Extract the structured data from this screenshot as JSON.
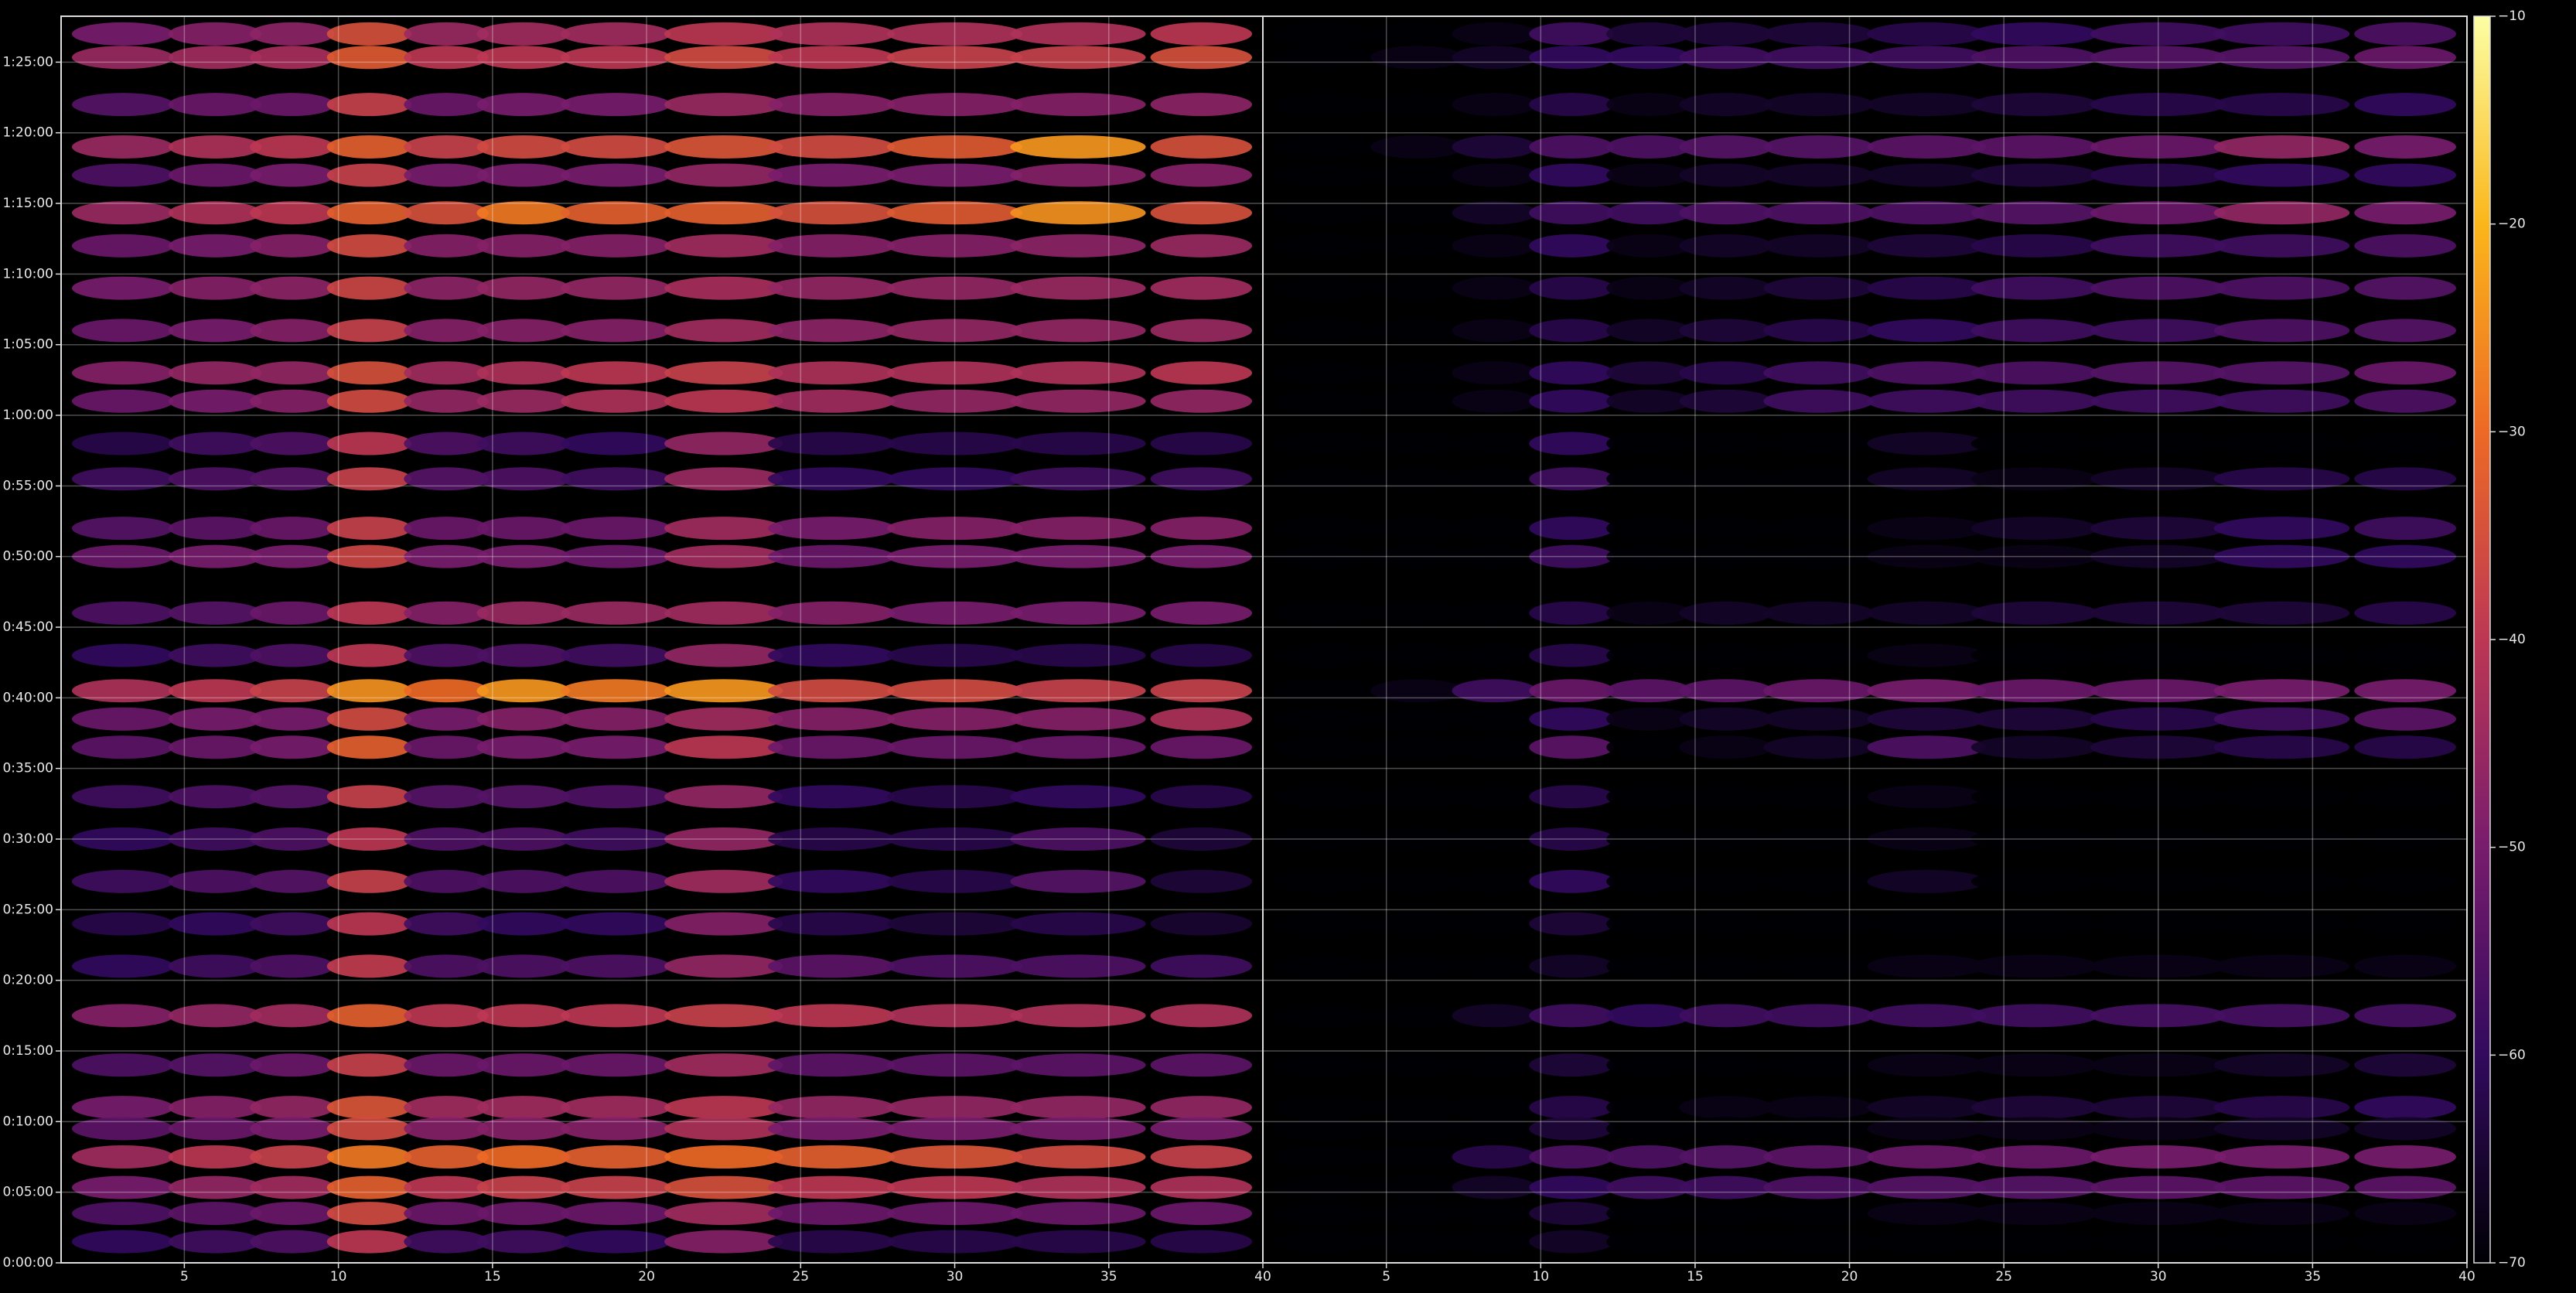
{
  "chart_data": {
    "type": "heatmap",
    "x": [
      3,
      6,
      8.5,
      11,
      13.5,
      16,
      19,
      22.5,
      26,
      30,
      34,
      38
    ],
    "y": [
      5220,
      5120,
      4920,
      4740,
      4620,
      4460,
      4320,
      4140,
      3960,
      3780,
      3660,
      3480,
      3330,
      3120,
      3000,
      2760,
      2580,
      2430,
      2310,
      2190,
      1980,
      1800,
      1620,
      1440,
      1260,
      1050,
      840,
      660,
      570,
      450,
      320,
      210,
      90
    ],
    "xlim": [
      1,
      40
    ],
    "xticks": [
      5,
      10,
      15,
      20,
      25,
      30,
      35,
      40
    ],
    "ylim": [
      0,
      5295
    ],
    "yticks": [
      {
        "value": 0,
        "label": "0:00:00"
      },
      {
        "value": 300,
        "label": "0:05:00"
      },
      {
        "value": 600,
        "label": "0:10:00"
      },
      {
        "value": 900,
        "label": "0:15:00"
      },
      {
        "value": 1200,
        "label": "0:20:00"
      },
      {
        "value": 1500,
        "label": "0:25:00"
      },
      {
        "value": 1800,
        "label": "0:30:00"
      },
      {
        "value": 2100,
        "label": "0:35:00"
      },
      {
        "value": 2400,
        "label": "0:40:00"
      },
      {
        "value": 2700,
        "label": "0:45:00"
      },
      {
        "value": 3000,
        "label": "0:50:00"
      },
      {
        "value": 3300,
        "label": "0:55:00"
      },
      {
        "value": 3600,
        "label": "1:00:00"
      },
      {
        "value": 3900,
        "label": "1:05:00"
      },
      {
        "value": 4200,
        "label": "1:10:00"
      },
      {
        "value": 4500,
        "label": "1:15:00"
      },
      {
        "value": 4800,
        "label": "1:20:00"
      },
      {
        "value": 5100,
        "label": "1:25:00"
      }
    ],
    "clim": [
      -70,
      -10
    ],
    "cticks": [
      {
        "value": -70,
        "label": "−70"
      },
      {
        "value": -60,
        "label": "−60"
      },
      {
        "value": -50,
        "label": "−50"
      },
      {
        "value": -40,
        "label": "−40"
      },
      {
        "value": -30,
        "label": "−30"
      },
      {
        "value": -20,
        "label": "−20"
      },
      {
        "value": -10,
        "label": "−10"
      }
    ],
    "colormap": [
      "#000004",
      "#320a5e",
      "#781c6d",
      "#bc3754",
      "#ed6925",
      "#fbb61a",
      "#fcffa4"
    ],
    "grid": true,
    "panels": [
      {
        "values": [
          [
            -50,
            -48,
            -47,
            -35,
            -45,
            -44,
            -44,
            -40,
            -42,
            -42,
            -42,
            -40
          ],
          [
            -45,
            -44,
            -43,
            -33,
            -40,
            -40,
            -40,
            -36,
            -40,
            -38,
            -38,
            -35
          ],
          [
            -55,
            -52,
            -52,
            -38,
            -52,
            -50,
            -50,
            -45,
            -48,
            -48,
            -48,
            -47
          ],
          [
            -45,
            -42,
            -40,
            -32,
            -38,
            -36,
            -36,
            -34,
            -36,
            -33,
            -24,
            -35
          ],
          [
            -56,
            -52,
            -50,
            -38,
            -50,
            -50,
            -50,
            -46,
            -50,
            -50,
            -48,
            -48
          ],
          [
            -45,
            -42,
            -40,
            -32,
            -35,
            -28,
            -32,
            -32,
            -35,
            -33,
            -25,
            -35
          ],
          [
            -52,
            -50,
            -48,
            -36,
            -48,
            -48,
            -48,
            -44,
            -48,
            -48,
            -47,
            -45
          ],
          [
            -50,
            -48,
            -47,
            -37,
            -47,
            -46,
            -46,
            -43,
            -46,
            -46,
            -45,
            -44
          ],
          [
            -52,
            -50,
            -48,
            -38,
            -48,
            -48,
            -48,
            -44,
            -47,
            -46,
            -46,
            -45
          ],
          [
            -48,
            -46,
            -46,
            -35,
            -44,
            -42,
            -40,
            -38,
            -42,
            -42,
            -42,
            -40
          ],
          [
            -52,
            -50,
            -48,
            -36,
            -46,
            -45,
            -42,
            -40,
            -44,
            -46,
            -46,
            -46
          ],
          [
            -62,
            -58,
            -56,
            -40,
            -56,
            -58,
            -60,
            -46,
            -62,
            -62,
            -62,
            -62
          ],
          [
            -58,
            -56,
            -55,
            -38,
            -55,
            -56,
            -58,
            -45,
            -60,
            -60,
            -58,
            -58
          ],
          [
            -55,
            -54,
            -52,
            -38,
            -52,
            -52,
            -52,
            -44,
            -50,
            -48,
            -48,
            -48
          ],
          [
            -52,
            -50,
            -50,
            -37,
            -50,
            -50,
            -52,
            -44,
            -52,
            -50,
            -50,
            -50
          ],
          [
            -56,
            -55,
            -52,
            -40,
            -48,
            -45,
            -45,
            -44,
            -48,
            -50,
            -50,
            -50
          ],
          [
            -60,
            -58,
            -56,
            -40,
            -56,
            -56,
            -58,
            -46,
            -60,
            -62,
            -62,
            -62
          ],
          [
            -42,
            -40,
            -38,
            -25,
            -30,
            -24,
            -28,
            -24,
            -36,
            -36,
            -38,
            -38
          ],
          [
            -52,
            -50,
            -50,
            -36,
            -50,
            -48,
            -48,
            -44,
            -48,
            -48,
            -48,
            -42
          ],
          [
            -54,
            -52,
            -50,
            -32,
            -52,
            -50,
            -50,
            -40,
            -52,
            -52,
            -52,
            -52
          ],
          [
            -58,
            -56,
            -55,
            -38,
            -55,
            -55,
            -56,
            -46,
            -60,
            -62,
            -60,
            -62
          ],
          [
            -60,
            -58,
            -56,
            -40,
            -56,
            -56,
            -58,
            -46,
            -62,
            -62,
            -56,
            -64
          ],
          [
            -58,
            -56,
            -55,
            -38,
            -56,
            -56,
            -56,
            -44,
            -60,
            -62,
            -55,
            -64
          ],
          [
            -62,
            -60,
            -58,
            -40,
            -58,
            -60,
            -60,
            -48,
            -62,
            -64,
            -62,
            -65
          ],
          [
            -60,
            -58,
            -56,
            -39,
            -56,
            -56,
            -56,
            -46,
            -54,
            -56,
            -56,
            -58
          ],
          [
            -48,
            -46,
            -44,
            -32,
            -40,
            -40,
            -40,
            -38,
            -40,
            -42,
            -42,
            -42
          ],
          [
            -56,
            -55,
            -52,
            -38,
            -52,
            -52,
            -52,
            -44,
            -54,
            -54,
            -54,
            -54
          ],
          [
            -50,
            -48,
            -46,
            -34,
            -44,
            -44,
            -44,
            -40,
            -46,
            -46,
            -46,
            -46
          ],
          [
            -54,
            -52,
            -50,
            -36,
            -48,
            -48,
            -48,
            -42,
            -50,
            -50,
            -50,
            -50
          ],
          [
            -44,
            -40,
            -38,
            -28,
            -32,
            -30,
            -32,
            -30,
            -32,
            -34,
            -36,
            -38
          ],
          [
            -50,
            -46,
            -44,
            -32,
            -40,
            -38,
            -38,
            -35,
            -40,
            -40,
            -42,
            -42
          ],
          [
            -56,
            -54,
            -52,
            -36,
            -52,
            -52,
            -52,
            -44,
            -52,
            -52,
            -52,
            -52
          ],
          [
            -60,
            -58,
            -56,
            -40,
            -58,
            -58,
            -60,
            -48,
            -62,
            -62,
            -62,
            -62
          ]
        ]
      },
      {
        "values": [
          [
            -70,
            -70,
            -68,
            -58,
            -64,
            -64,
            -64,
            -62,
            -60,
            -58,
            -58,
            -56
          ],
          [
            -70,
            -68,
            -66,
            -60,
            -60,
            -58,
            -58,
            -58,
            -56,
            -55,
            -55,
            -52
          ],
          [
            -70,
            -70,
            -68,
            -62,
            -68,
            -66,
            -66,
            -66,
            -64,
            -62,
            -62,
            -60
          ],
          [
            -70,
            -68,
            -64,
            -56,
            -56,
            -55,
            -55,
            -54,
            -54,
            -52,
            -46,
            -50
          ],
          [
            -70,
            -70,
            -68,
            -60,
            -68,
            -66,
            -66,
            -66,
            -64,
            -62,
            -60,
            -60
          ],
          [
            -70,
            -70,
            -66,
            -58,
            -58,
            -56,
            -56,
            -56,
            -55,
            -52,
            -46,
            -50
          ],
          [
            -70,
            -70,
            -68,
            -60,
            -68,
            -66,
            -66,
            -64,
            -62,
            -58,
            -58,
            -56
          ],
          [
            -70,
            -70,
            -68,
            -62,
            -68,
            -66,
            -64,
            -62,
            -58,
            -56,
            -56,
            -55
          ],
          [
            -70,
            -70,
            -68,
            -62,
            -66,
            -64,
            -62,
            -60,
            -58,
            -58,
            -56,
            -55
          ],
          [
            -70,
            -70,
            -68,
            -60,
            -64,
            -62,
            -58,
            -56,
            -56,
            -55,
            -55,
            -52
          ],
          [
            -70,
            -70,
            -68,
            -60,
            -66,
            -64,
            -58,
            -58,
            -58,
            -58,
            -58,
            -56
          ],
          [
            -70,
            -70,
            -70,
            -60,
            -70,
            -70,
            -70,
            -66,
            -70,
            -70,
            -70,
            -70
          ],
          [
            -70,
            -70,
            -70,
            -58,
            -70,
            -70,
            -70,
            -66,
            -68,
            -66,
            -62,
            -62
          ],
          [
            -70,
            -70,
            -70,
            -60,
            -70,
            -70,
            -70,
            -68,
            -66,
            -64,
            -60,
            -58
          ],
          [
            -70,
            -70,
            -70,
            -58,
            -70,
            -70,
            -70,
            -68,
            -68,
            -66,
            -60,
            -60
          ],
          [
            -70,
            -70,
            -70,
            -62,
            -68,
            -66,
            -66,
            -66,
            -64,
            -64,
            -64,
            -62
          ],
          [
            -70,
            -70,
            -70,
            -62,
            -70,
            -70,
            -70,
            -68,
            -70,
            -70,
            -70,
            -70
          ],
          [
            -70,
            -68,
            -58,
            -52,
            -54,
            -54,
            -52,
            -50,
            -52,
            -52,
            -50,
            -50
          ],
          [
            -70,
            -70,
            -70,
            -60,
            -68,
            -66,
            -66,
            -64,
            -64,
            -62,
            -58,
            -54
          ],
          [
            -70,
            -70,
            -70,
            -54,
            -70,
            -68,
            -66,
            -56,
            -66,
            -64,
            -62,
            -62
          ],
          [
            -70,
            -70,
            -70,
            -62,
            -70,
            -70,
            -70,
            -68,
            -70,
            -70,
            -70,
            -70
          ],
          [
            -70,
            -70,
            -70,
            -62,
            -70,
            -70,
            -70,
            -68,
            -70,
            -70,
            -70,
            -70
          ],
          [
            -70,
            -70,
            -70,
            -60,
            -70,
            -70,
            -70,
            -66,
            -70,
            -70,
            -70,
            -70
          ],
          [
            -70,
            -70,
            -70,
            -64,
            -70,
            -70,
            -70,
            -70,
            -70,
            -70,
            -70,
            -70
          ],
          [
            -70,
            -70,
            -70,
            -66,
            -70,
            -70,
            -70,
            -68,
            -68,
            -68,
            -68,
            -68
          ],
          [
            -70,
            -70,
            -66,
            -58,
            -60,
            -58,
            -58,
            -58,
            -58,
            -57,
            -57,
            -57
          ],
          [
            -70,
            -70,
            -70,
            -64,
            -70,
            -70,
            -70,
            -68,
            -68,
            -68,
            -66,
            -64
          ],
          [
            -70,
            -70,
            -70,
            -62,
            -70,
            -68,
            -68,
            -66,
            -64,
            -64,
            -62,
            -60
          ],
          [
            -70,
            -70,
            -70,
            -64,
            -70,
            -70,
            -70,
            -68,
            -68,
            -68,
            -66,
            -66
          ],
          [
            -70,
            -70,
            -62,
            -56,
            -56,
            -55,
            -54,
            -52,
            -52,
            -50,
            -50,
            -50
          ],
          [
            -70,
            -70,
            -66,
            -60,
            -58,
            -58,
            -56,
            -55,
            -55,
            -54,
            -54,
            -54
          ],
          [
            -70,
            -70,
            -70,
            -64,
            -70,
            -70,
            -70,
            -68,
            -68,
            -68,
            -68,
            -68
          ],
          [
            -70,
            -70,
            -70,
            -66,
            -70,
            -70,
            -70,
            -70,
            -70,
            -70,
            -70,
            -70
          ]
        ]
      }
    ]
  }
}
